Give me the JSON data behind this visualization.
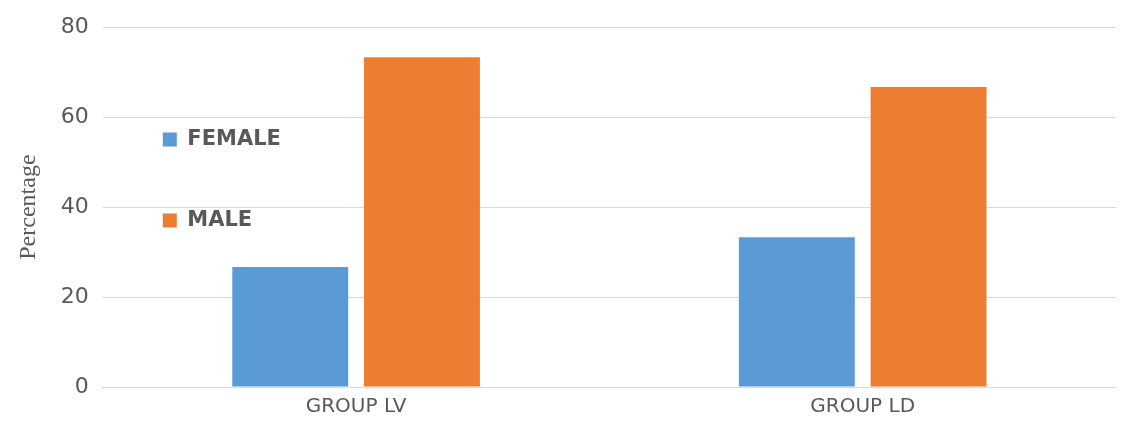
{
  "chart_data": {
    "type": "bar",
    "ylabel": "Percentage",
    "categories": [
      "GROUP LV",
      "GROUP LD"
    ],
    "series": [
      {
        "name": "FEMALE",
        "color": "#5b9bd5",
        "values": [
          26.7,
          33.3
        ]
      },
      {
        "name": "MALE",
        "color": "#ed7d31",
        "values": [
          73.3,
          66.7
        ]
      }
    ],
    "ylim": [
      0,
      80
    ],
    "yticks": [
      0,
      20,
      40,
      60,
      80
    ],
    "grid": "y",
    "legend": "top"
  }
}
